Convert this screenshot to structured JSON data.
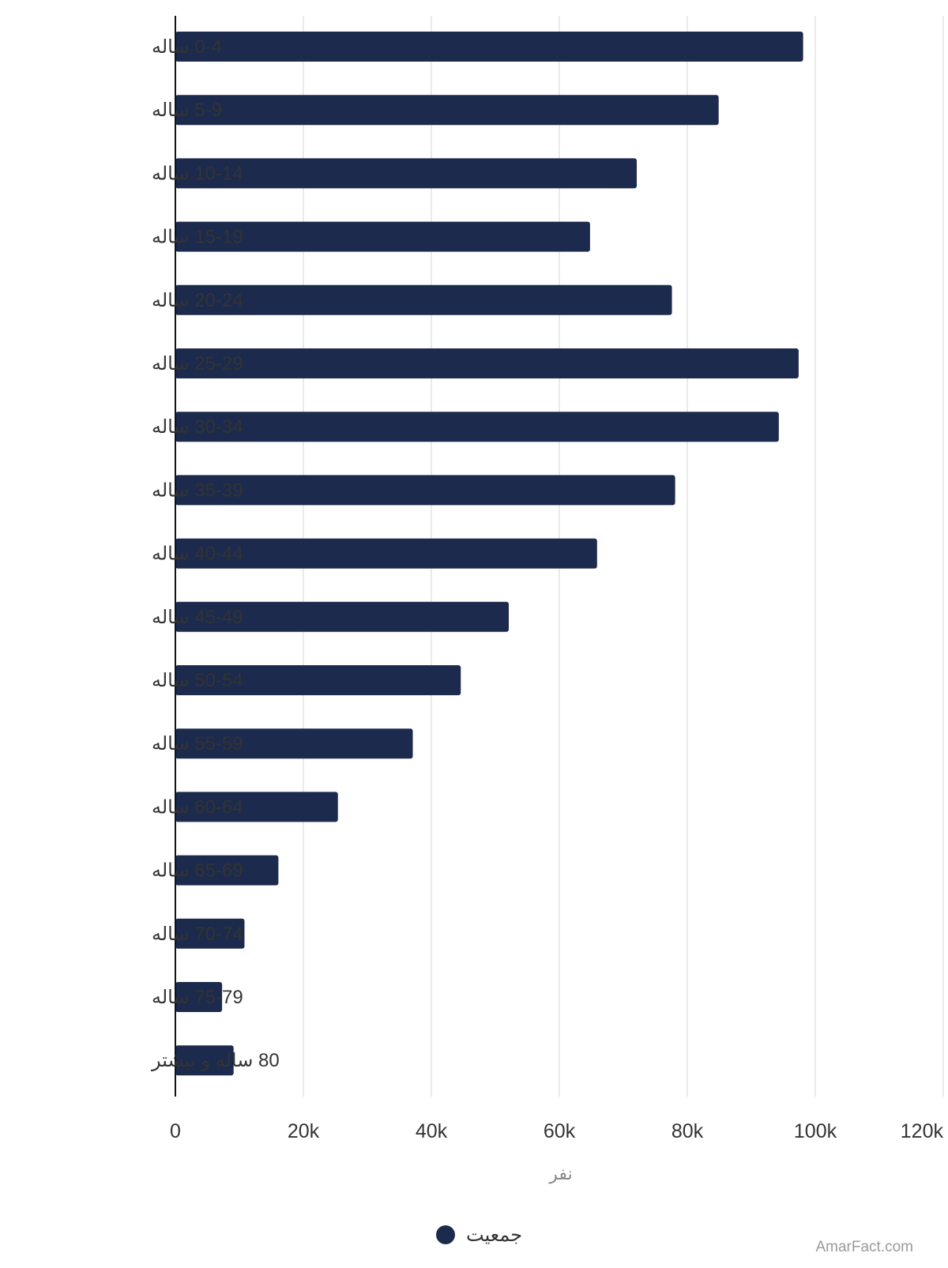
{
  "chart_data": {
    "type": "bar",
    "orientation": "horizontal",
    "categories": [
      "0-4 ساله",
      "5-9 ساله",
      "10-14 ساله",
      "15-19 ساله",
      "20-24 ساله",
      "25-29 ساله",
      "30-34 ساله",
      "35-39 ساله",
      "40-44 ساله",
      "45-49 ساله",
      "50-54 ساله",
      "55-59 ساله",
      "60-64 ساله",
      "65-69 ساله",
      "70-74 ساله",
      "75-79 ساله",
      "80 ساله و بیشتر"
    ],
    "series": [
      {
        "name": "جمعیت",
        "color": "#1c2a4d",
        "values": [
          98100,
          84900,
          72100,
          64800,
          77600,
          97400,
          94300,
          78100,
          65900,
          52100,
          44600,
          37100,
          25400,
          16100,
          10800,
          7300,
          9100
        ]
      }
    ],
    "xlabel": "نفر",
    "ylabel": "",
    "xlim": [
      0,
      120000
    ],
    "xticks": [
      0,
      20000,
      40000,
      60000,
      80000,
      100000,
      120000
    ],
    "xtick_labels": [
      "0",
      "20k",
      "40k",
      "60k",
      "80k",
      "100k",
      "120k"
    ],
    "grid": "vertical",
    "legend_position": "bottom-center"
  },
  "colors": {
    "bar": "#1c2a4d",
    "gridline": "#e3e3e3",
    "axis": "#111111",
    "label_text": "#333333",
    "axis_title_text": "#888888",
    "watermark_text": "#9a9a9a"
  },
  "watermark": "AmarFact.com"
}
